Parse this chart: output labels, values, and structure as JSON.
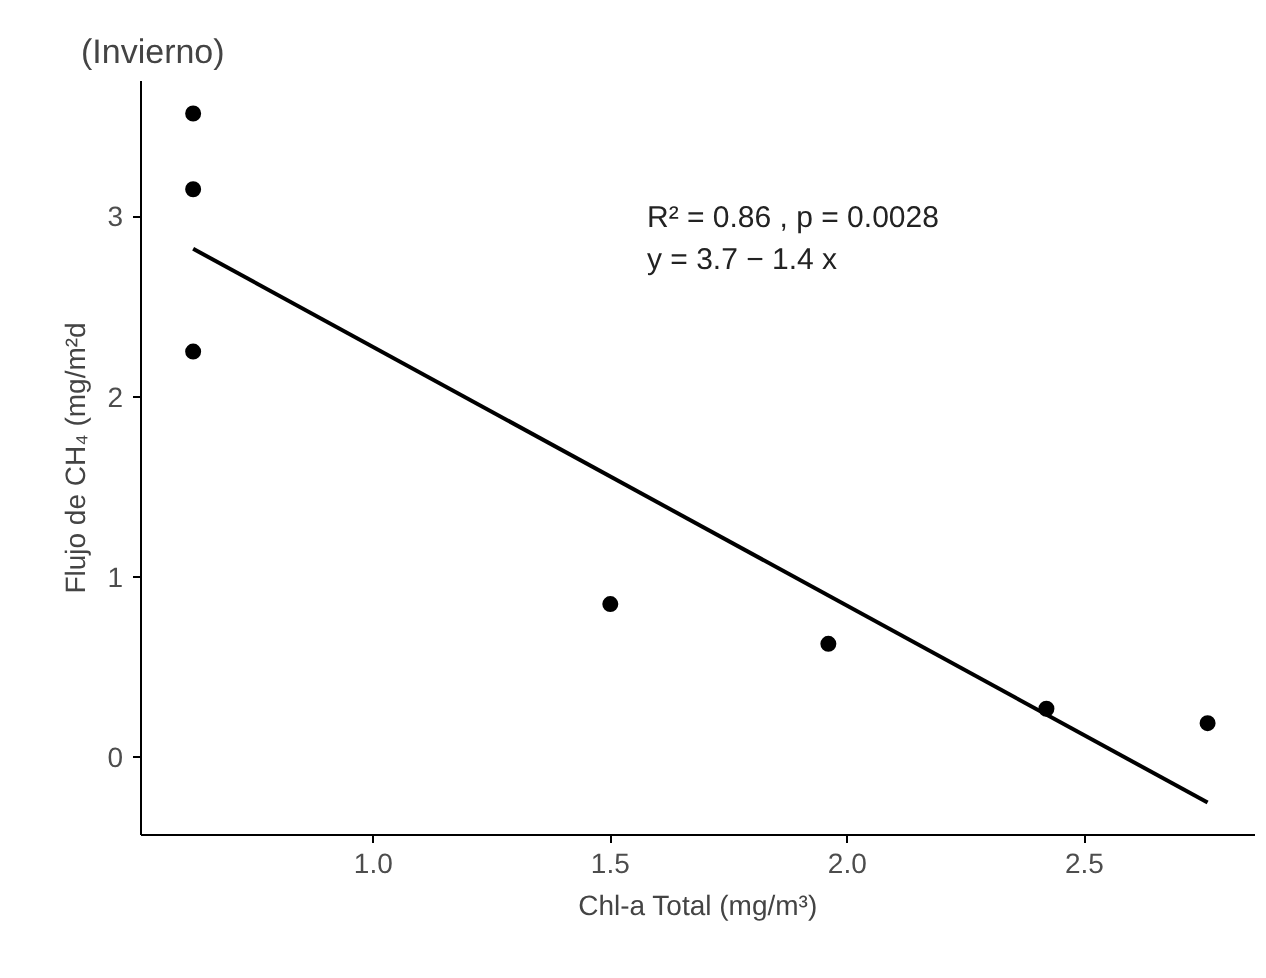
{
  "chart_data": {
    "type": "scatter",
    "title": "(Invierno)",
    "xlabel": "Chl-a Total (mg/m³)",
    "ylabel": "Flujo de CH₄ (mg/m²d",
    "series": [
      {
        "color": "#000000",
        "x": [
          0.62,
          0.62,
          0.62,
          1.5,
          1.96,
          2.42,
          2.76
        ],
        "values": [
          3.57,
          3.15,
          2.25,
          0.85,
          0.63,
          0.27,
          0.19
        ]
      },
      {
        "type": "line",
        "marker": "none",
        "color": "#000000",
        "x": [
          0.62,
          2.76
        ],
        "values": [
          2.82,
          -0.25
        ]
      }
    ],
    "annotations": [
      "R² = 0.86 , p = 0.0028",
      "y = 3.7 − 1.4 x"
    ],
    "xlim": [
      0.51,
      2.86
    ],
    "ylim": [
      -0.43,
      3.75
    ],
    "xticks": [
      {
        "value": 1,
        "label": "1.0"
      },
      1.5,
      {
        "value": 2,
        "label": "2.0"
      },
      2.5
    ],
    "yticks": [
      0,
      1,
      2,
      3
    ],
    "grid": false,
    "marker": "circle",
    "line_style": "solid"
  }
}
